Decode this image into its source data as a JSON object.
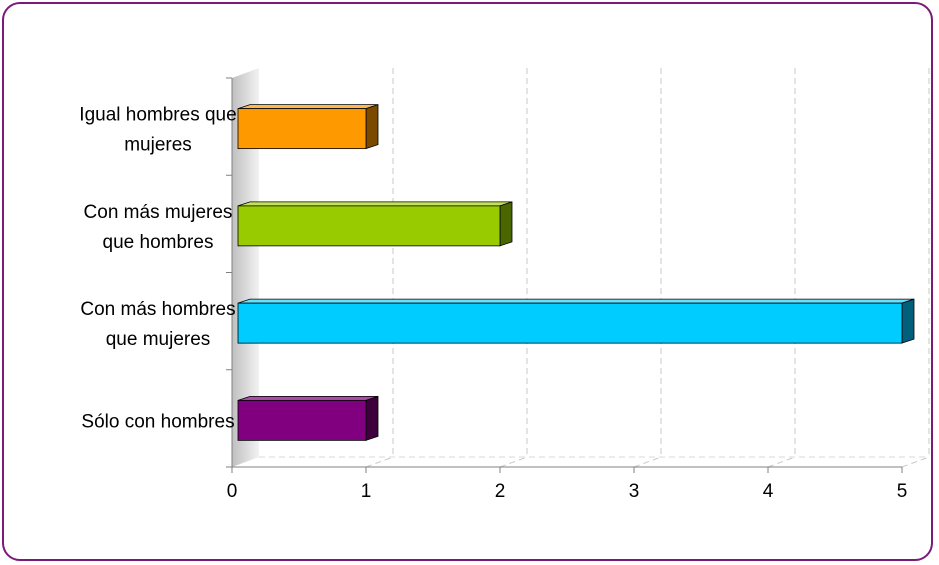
{
  "chart_data": {
    "type": "bar",
    "orientation": "horizontal",
    "style": "3d",
    "title": "",
    "xlabel": "",
    "ylabel": "",
    "xlim": [
      0,
      5
    ],
    "ticks": [
      "0",
      "1",
      "2",
      "3",
      "4",
      "5"
    ],
    "grid": true,
    "legend": "none",
    "categories": [
      {
        "lines": [
          "Igual hombres que",
          "mujeres"
        ]
      },
      {
        "lines": [
          "Con más mujeres",
          "que hombres"
        ]
      },
      {
        "lines": [
          "Con más hombres",
          "que mujeres"
        ]
      },
      {
        "lines": [
          "Sólo con hombres"
        ]
      }
    ],
    "values": [
      1,
      2,
      5,
      1
    ],
    "colors": [
      {
        "front": "#ff9900",
        "top": "#ffb84d",
        "side": "#7a4a00"
      },
      {
        "front": "#99cc00",
        "top": "#c2e05a",
        "side": "#4a6600"
      },
      {
        "front": "#00ccff",
        "top": "#66e0ff",
        "side": "#005f7a"
      },
      {
        "front": "#800080",
        "top": "#a64da6",
        "side": "#3d003d"
      }
    ],
    "frame_color": "#7a1a7a"
  }
}
